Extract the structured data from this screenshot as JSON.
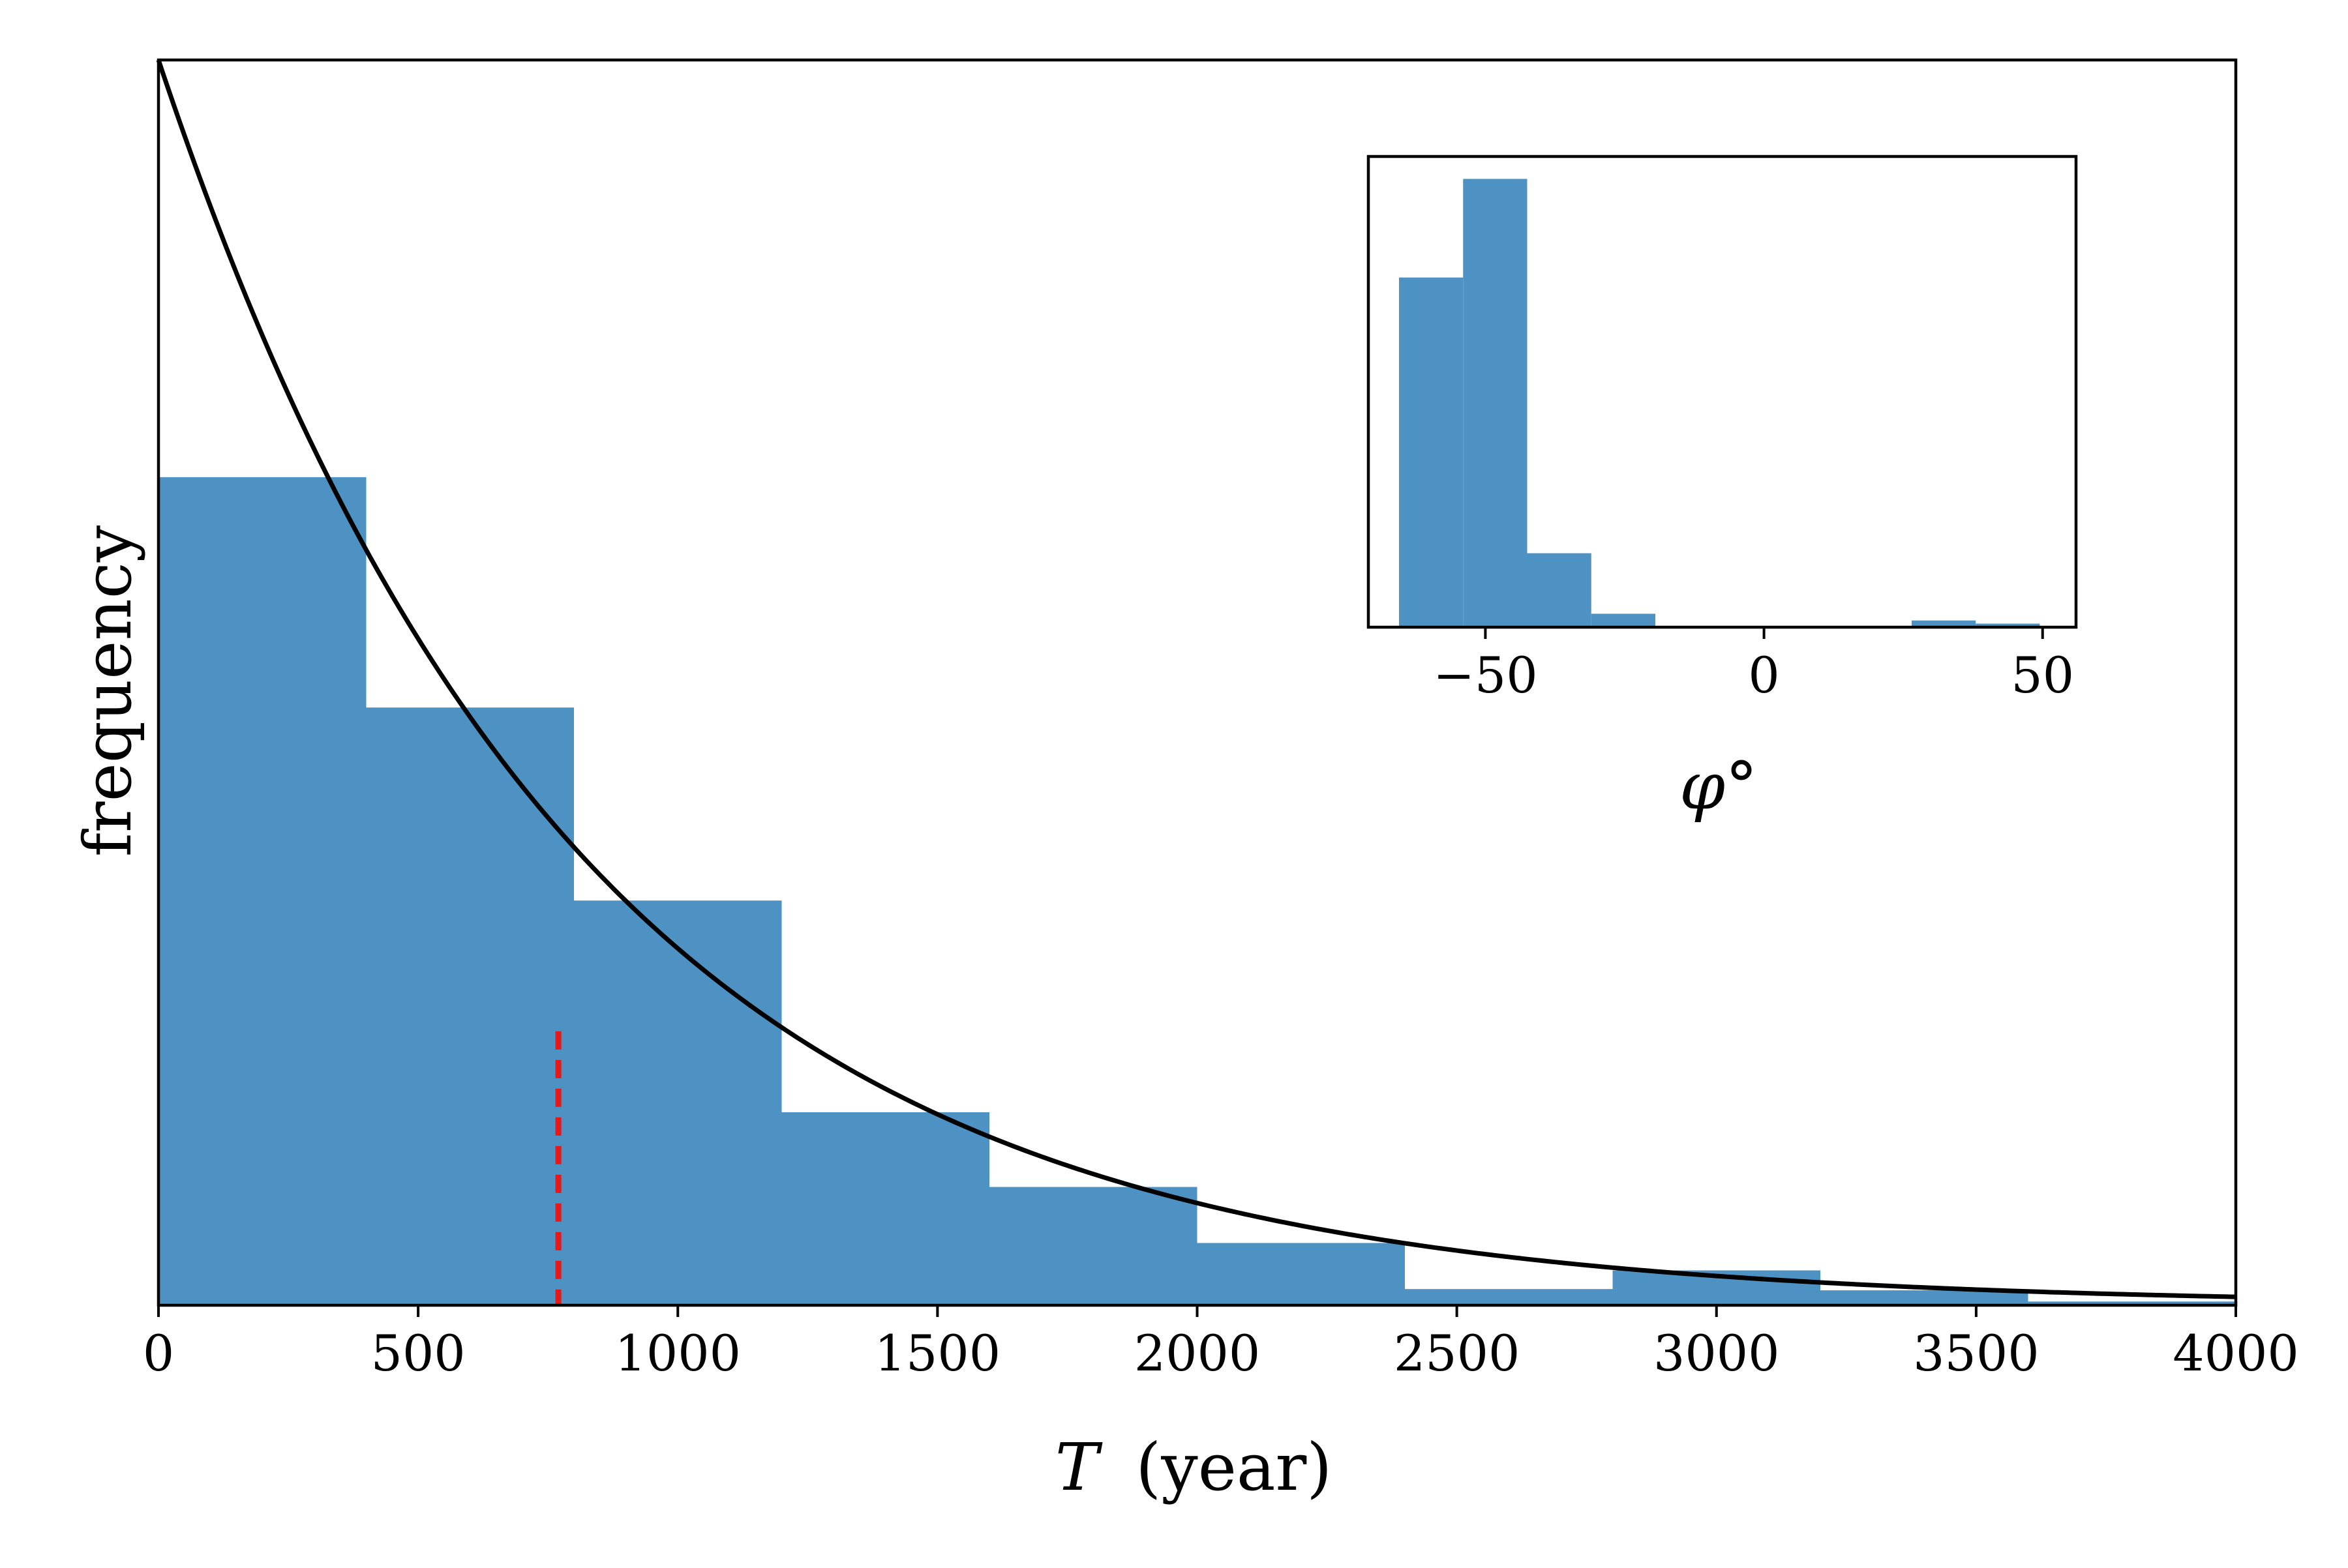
{
  "chart_data": [
    {
      "type": "bar",
      "role": "main-histogram",
      "xlabel_symbol": "T",
      "xlabel_unit": "(year)",
      "ylabel": "frequency",
      "xlim": [
        0,
        4000
      ],
      "ylim": [
        0,
        1.0
      ],
      "xticks": [
        0,
        500,
        1000,
        1500,
        2000,
        2500,
        3000,
        3500,
        4000
      ],
      "yticks_shown": false,
      "bins": [
        {
          "x0": 0,
          "x1": 400,
          "value": 0.665
        },
        {
          "x0": 400,
          "x1": 800,
          "value": 0.48
        },
        {
          "x0": 800,
          "x1": 1200,
          "value": 0.325
        },
        {
          "x0": 1200,
          "x1": 1600,
          "value": 0.155
        },
        {
          "x0": 1600,
          "x1": 2000,
          "value": 0.095
        },
        {
          "x0": 2000,
          "x1": 2400,
          "value": 0.05
        },
        {
          "x0": 2400,
          "x1": 2800,
          "value": 0.013
        },
        {
          "x0": 2800,
          "x1": 3200,
          "value": 0.028
        },
        {
          "x0": 3200,
          "x1": 3600,
          "value": 0.012
        },
        {
          "x0": 3600,
          "x1": 4000,
          "value": 0.003
        }
      ],
      "fit_curve": {
        "type": "exponential",
        "y0": 1.0,
        "scale": 800
      },
      "marker_line": {
        "x": 770,
        "y_top": 0.22,
        "style": "dashed",
        "color": "#e4191c"
      },
      "bar_color": "#4d92c3",
      "grid": false
    },
    {
      "type": "bar",
      "role": "inset-histogram",
      "xlabel": "φ°",
      "xlim": [
        -71,
        56
      ],
      "ylim": [
        0,
        1.05
      ],
      "xticks": [
        -50,
        0,
        50
      ],
      "xtick_labels": [
        "−50",
        "0",
        "50"
      ],
      "yticks_shown": false,
      "bins": [
        {
          "x0": -65.5,
          "x1": -54,
          "value": 0.78
        },
        {
          "x0": -54,
          "x1": -42.5,
          "value": 1.0
        },
        {
          "x0": -42.5,
          "x1": -31,
          "value": 0.165
        },
        {
          "x0": -31,
          "x1": -19.5,
          "value": 0.03
        },
        {
          "x0": -19.5,
          "x1": -8,
          "value": 0.0
        },
        {
          "x0": -8,
          "x1": 3.5,
          "value": 0.0
        },
        {
          "x0": 3.5,
          "x1": 15,
          "value": 0.0
        },
        {
          "x0": 15,
          "x1": 26.5,
          "value": 0.0
        },
        {
          "x0": 26.5,
          "x1": 38,
          "value": 0.015
        },
        {
          "x0": 38,
          "x1": 49.5,
          "value": 0.008
        }
      ],
      "bar_color": "#4d92c3",
      "grid": false
    }
  ]
}
